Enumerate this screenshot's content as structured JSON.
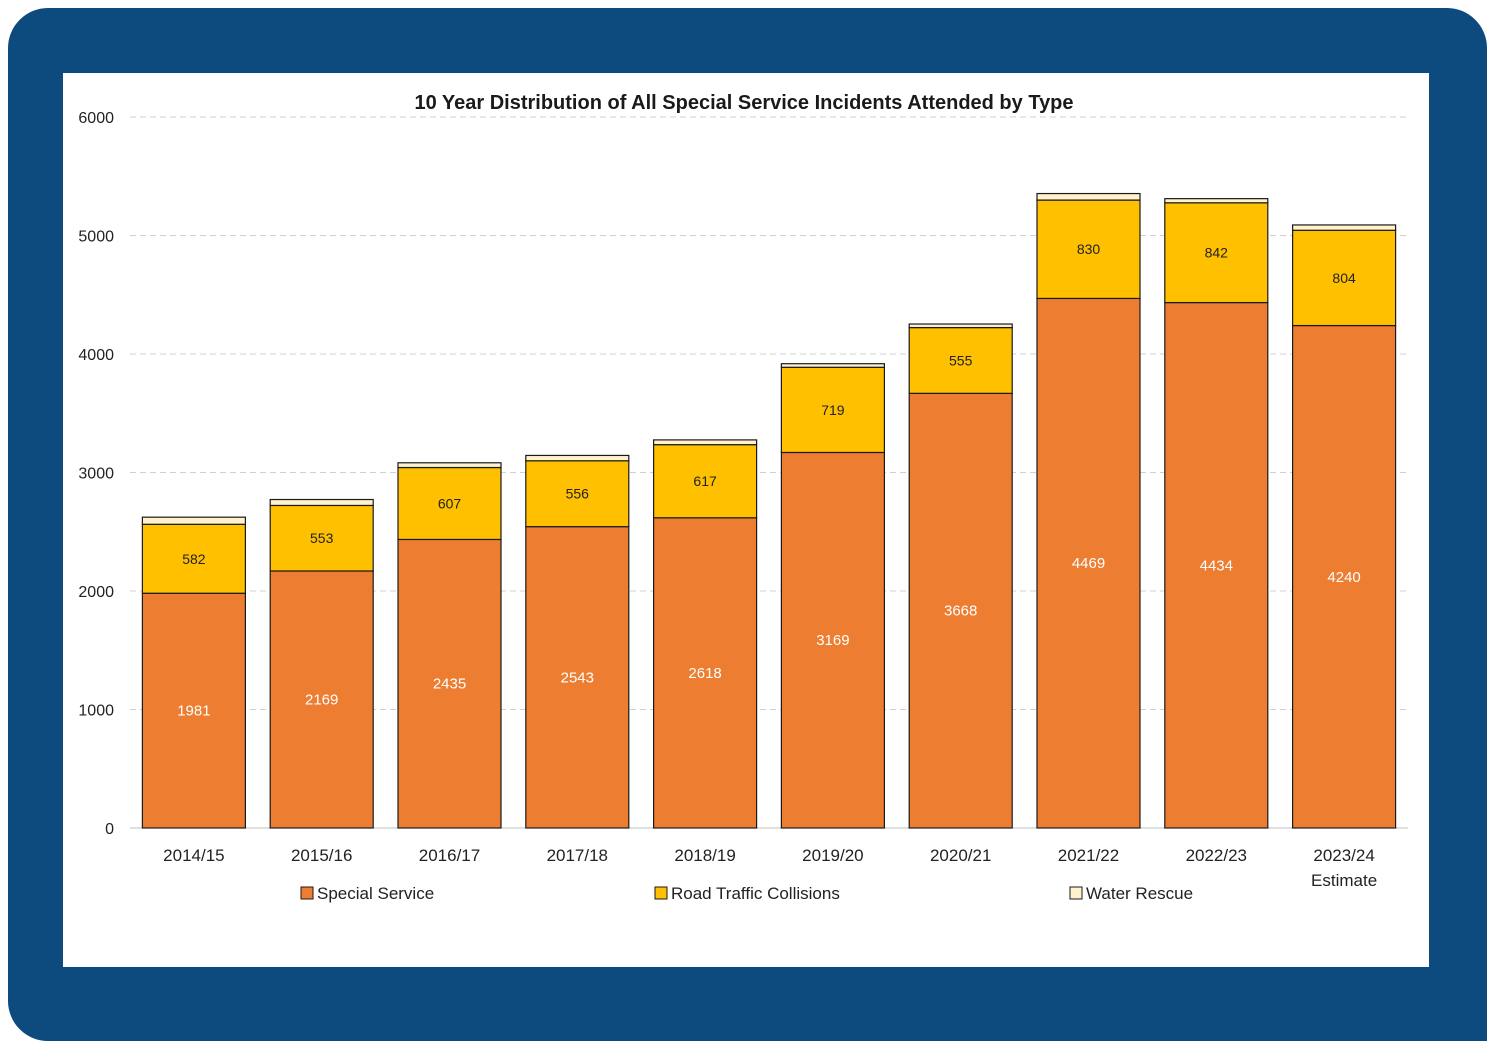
{
  "colors": {
    "frame": "#0d4a7e",
    "special_service": "#ed7d31",
    "road_traffic_collisions": "#ffc000",
    "water_rescue": "#fff2cc"
  },
  "chart_data": {
    "type": "bar",
    "stacked": true,
    "title": "10 Year Distribution of All Special Service Incidents Attended by Type",
    "xlabel": "",
    "ylabel": "",
    "ylim": [
      0,
      6000
    ],
    "yticks": [
      0,
      1000,
      2000,
      3000,
      4000,
      5000,
      6000
    ],
    "grid": true,
    "legend_position": "bottom",
    "categories": [
      "2014/15",
      "2015/16",
      "2016/17",
      "2017/18",
      "2018/19",
      "2019/20",
      "2020/21",
      "2021/22",
      "2022/23",
      "2023/24 Estimate"
    ],
    "series": [
      {
        "name": "Special Service",
        "color": "#ed7d31",
        "values": [
          1981,
          2169,
          2435,
          2543,
          2618,
          3169,
          3668,
          4469,
          4434,
          4240
        ]
      },
      {
        "name": "Road Traffic Collisions",
        "color": "#ffc000",
        "values": [
          582,
          553,
          607,
          556,
          617,
          719,
          555,
          830,
          842,
          804
        ]
      },
      {
        "name": "Water Rescue",
        "color": "#fff2cc",
        "values": [
          60,
          50,
          40,
          45,
          40,
          30,
          30,
          55,
          35,
          45
        ]
      }
    ]
  }
}
